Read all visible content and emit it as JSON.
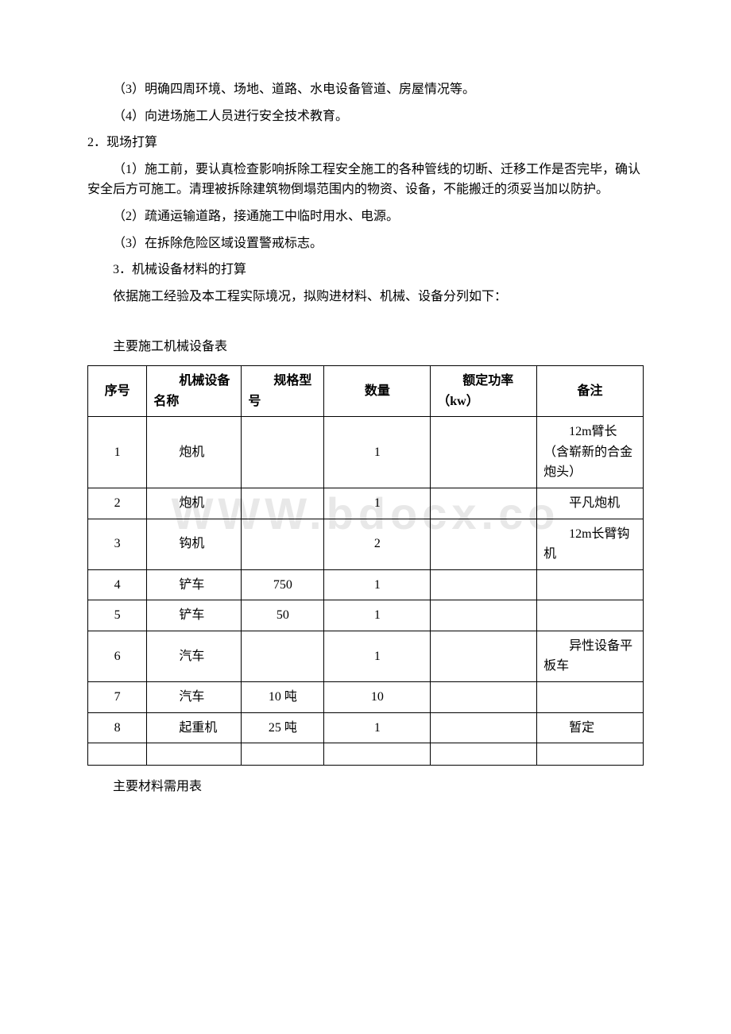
{
  "watermark": "WWW.bdocx.co",
  "paragraphs": {
    "p1": "（3）明确四周环境、场地、道路、水电设备管道、房屋情况等。",
    "p2": "（4）向进场施工人员进行安全技术教育。",
    "p3": "2．现场打算",
    "p4": "（1）施工前，要认真检查影响拆除工程安全施工的各种管线的切断、迁移工作是否完毕，确认安全后方可施工。清理被拆除建筑物倒塌范围内的物资、设备，不能搬迁的须妥当加以防护。",
    "p5": "（2）疏通运输道路，接通施工中临时用水、电源。",
    "p6": "（3）在拆除危险区域设置警戒标志。",
    "p7": "3．机械设备材料的打算",
    "p8": "依据施工经验及本工程实际境况，拟购进材料、机械、设备分列如下：",
    "table_title": "主要施工机械设备表",
    "table2_title": "主要材料需用表"
  },
  "table": {
    "headers": {
      "seq": "序号",
      "name": "机械设备名称",
      "spec": "规格型号",
      "qty": "数量",
      "power": "额定功率（kw）",
      "note": "备注"
    },
    "rows": [
      {
        "seq": "1",
        "name": "炮机",
        "spec": "",
        "qty": "1",
        "power": "",
        "note": "12m臂长（含崭新的合金炮头）"
      },
      {
        "seq": "2",
        "name": "炮机",
        "spec": "",
        "qty": "1",
        "power": "",
        "note": "平凡炮机"
      },
      {
        "seq": "3",
        "name": "钩机",
        "spec": "",
        "qty": "2",
        "power": "",
        "note": "12m长臂钩机"
      },
      {
        "seq": "4",
        "name": "铲车",
        "spec": "750",
        "qty": "1",
        "power": "",
        "note": ""
      },
      {
        "seq": "5",
        "name": "铲车",
        "spec": "50",
        "qty": "1",
        "power": "",
        "note": ""
      },
      {
        "seq": "6",
        "name": "汽车",
        "spec": "",
        "qty": "1",
        "power": "",
        "note": "异性设备平板车"
      },
      {
        "seq": "7",
        "name": "汽车",
        "spec": "10 吨",
        "qty": "10",
        "power": "",
        "note": ""
      },
      {
        "seq": "8",
        "name": "起重机",
        "spec": "25 吨",
        "qty": "1",
        "power": "",
        "note": "暂定"
      }
    ]
  }
}
